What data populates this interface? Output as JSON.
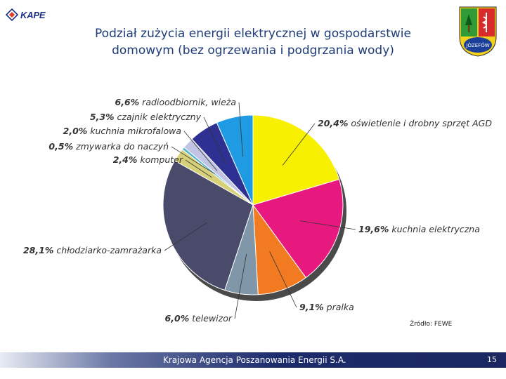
{
  "header": {
    "logo_text": "KAPE",
    "title_line1": "Podział zużycia energii elektrycznej w gospodarstwie",
    "title_line2": "domowym (bez ogrzewania i podgrzania wody)",
    "crest_text": "JÓZEFÓW"
  },
  "chart_data": {
    "type": "pie",
    "title": "Podział zużycia energii elektrycznej w gospodarstwie domowym (bez ogrzewania i podgrzania wody)",
    "unit": "%",
    "slices": [
      {
        "label": "oświetlenie i drobny sprzęt AGD",
        "value": 20.4,
        "value_text": "20,4%",
        "color": "#f7f000"
      },
      {
        "label": "kuchnia elektryczna",
        "value": 19.6,
        "value_text": "19,6%",
        "color": "#e8197e"
      },
      {
        "label": "pralka",
        "value": 9.1,
        "value_text": "9,1%",
        "color": "#f27a21"
      },
      {
        "label": "telewizor",
        "value": 6.0,
        "value_text": "6,0%",
        "color": "#7f97a8"
      },
      {
        "label": "chłodziarko-zamrażarka",
        "value": 28.1,
        "value_text": "28,1%",
        "color": "#4a4a6b"
      },
      {
        "label": "komputer",
        "value": 2.4,
        "value_text": "2,4%",
        "color": "#d6d178"
      },
      {
        "label": "zmywarka do naczyń",
        "value": 0.5,
        "value_text": "0,5%",
        "color": "#55b4c9"
      },
      {
        "label": "kuchnia mikrofalowa",
        "value": 2.0,
        "value_text": "2,0%",
        "color": "#c2c4e6"
      },
      {
        "label": "czajnik elektryczny",
        "value": 5.3,
        "value_text": "5,3%",
        "color": "#2e3191"
      },
      {
        "label": "radioodbiornik, wieża",
        "value": 6.6,
        "value_text": "6,6%",
        "color": "#1e9be2"
      }
    ],
    "source": "Źródło: FEWE"
  },
  "footer": {
    "text": "Krajowa Agencja Poszanowania Energii S.A.",
    "page_number": "15"
  }
}
